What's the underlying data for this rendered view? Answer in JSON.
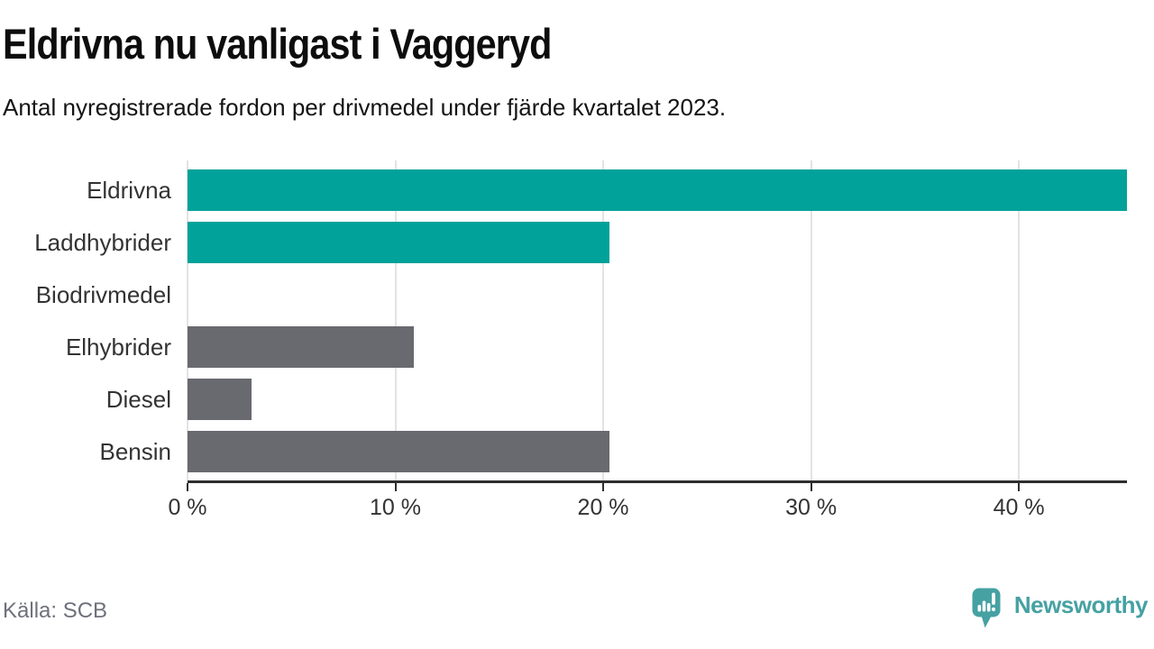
{
  "chart_data": {
    "type": "bar",
    "orientation": "horizontal",
    "title": "Eldrivna nu vanligast i Vaggeryd",
    "subtitle": "Antal nyregistrerade fordon per drivmedel under fjärde kvartalet 2023.",
    "categories": [
      "Eldrivna",
      "Laddhybrider",
      "Biodrivmedel",
      "Elhybrider",
      "Diesel",
      "Bensin"
    ],
    "values": [
      45.2,
      20.3,
      0,
      10.9,
      3.1,
      20.3
    ],
    "value_unit": "%",
    "bar_colors": [
      "#00a29a",
      "#00a29a",
      "#696970",
      "#696970",
      "#696970",
      "#696970"
    ],
    "x_ticks": [
      0,
      10,
      20,
      30,
      40
    ],
    "x_tick_labels": [
      "0 %",
      "10 %",
      "20 %",
      "30 %",
      "40 %"
    ],
    "xlim": [
      0,
      45.2
    ],
    "grid": true,
    "legend": "none",
    "highlight_color": "#00a29a",
    "base_color": "#696970"
  },
  "colors": {
    "title_text": "#0d0d0d",
    "label_text": "#333333",
    "grid": "#e3e3e3",
    "axis": "#2e2e2e",
    "source_text": "#6e717a",
    "brand_teal": "#46a1a3"
  },
  "footer": {
    "source": "Källa: SCB",
    "brand": "Newsworthy"
  }
}
